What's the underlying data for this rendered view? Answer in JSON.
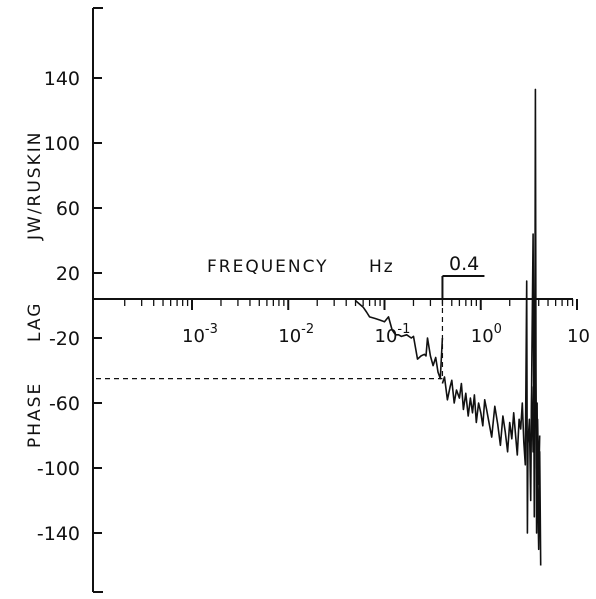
{
  "chart_data": {
    "type": "line",
    "ylabel": "PHASE LAG JW/RUSKIN",
    "ylabel_parts": [
      "PHASE",
      "LAG",
      "JW/RUSKIN"
    ],
    "xlabel": "FREQUENCY",
    "xunit": "Hz",
    "x_scale": "log",
    "ylim": [
      -180,
      180
    ],
    "xlim": [
      0.0001,
      10
    ],
    "y_ticks": [
      140,
      100,
      60,
      20,
      -20,
      -60,
      -100,
      -140
    ],
    "y_tick_labels": [
      "140",
      "100",
      "60",
      "20",
      "-20",
      "-60",
      "-100",
      "-140"
    ],
    "x_ticks": [
      {
        "base": "10",
        "exp": "-3",
        "value": 0.001
      },
      {
        "base": "10",
        "exp": "-2",
        "value": 0.01
      },
      {
        "base": "10",
        "exp": "-1",
        "value": 0.1
      },
      {
        "base": "10",
        "exp": "0",
        "value": 1
      },
      {
        "base": "10",
        "exp": "",
        "value": 10
      }
    ],
    "annotation": {
      "text": "0.4",
      "x": 0.4
    },
    "reference_line": {
      "y": -45,
      "x_from": 0.0001,
      "x_to": 0.4
    },
    "series": [
      {
        "x": [
          0.05,
          0.06,
          0.065,
          0.07,
          0.08,
          0.09,
          0.1,
          0.11,
          0.12,
          0.13,
          0.14,
          0.15,
          0.17,
          0.19,
          0.2,
          0.22,
          0.24,
          0.26,
          0.27,
          0.28,
          0.3,
          0.32,
          0.34,
          0.36,
          0.38,
          0.4
        ],
        "y": [
          3,
          -1,
          -4,
          -7,
          -8,
          -9,
          -10,
          -7,
          -15,
          -18,
          -18,
          -19,
          -18,
          -20,
          -19,
          -33,
          -31,
          -30,
          -31,
          -20,
          -31,
          -37,
          -32,
          -41,
          -45,
          -20
        ]
      },
      {
        "x": [
          0.4,
          0.42,
          0.45,
          0.48,
          0.5,
          0.53,
          0.56,
          0.6,
          0.63,
          0.66,
          0.7,
          0.74,
          0.78,
          0.82,
          0.86,
          0.9,
          0.95,
          1.0,
          1.05,
          1.1,
          1.15,
          1.2,
          1.3,
          1.4,
          1.5,
          1.6,
          1.7,
          1.8,
          1.9,
          2.0,
          2.1,
          2.2,
          2.3,
          2.4,
          2.5,
          2.6,
          2.7,
          2.8,
          2.9,
          3.0,
          3.05,
          3.1,
          3.2,
          3.3,
          3.4,
          3.5,
          3.6,
          3.65,
          3.7,
          3.75,
          3.8,
          3.85,
          3.9,
          4.0,
          4.1,
          4.2
        ],
        "y": [
          -48,
          -44,
          -58,
          -50,
          -46,
          -60,
          -52,
          -57,
          -48,
          -64,
          -54,
          -68,
          -57,
          -66,
          -55,
          -72,
          -60,
          -66,
          -74,
          -58,
          -64,
          -70,
          -81,
          -62,
          -73,
          -86,
          -68,
          -78,
          -90,
          -72,
          -82,
          -66,
          -80,
          -92,
          -70,
          -76,
          -60,
          -84,
          -98,
          15,
          -140,
          -85,
          -70,
          -120,
          -30,
          44,
          -130,
          -20,
          133,
          -40,
          -140,
          -60,
          -110,
          -150,
          -90,
          -160
        ]
      },
      {
        "x": [
          3.35,
          3.4,
          3.5,
          3.6,
          3.7,
          3.8,
          3.9,
          4.0,
          4.1
        ],
        "y": [
          -70,
          -50,
          -90,
          -60,
          -30,
          -100,
          -70,
          -110,
          -80
        ]
      }
    ]
  }
}
